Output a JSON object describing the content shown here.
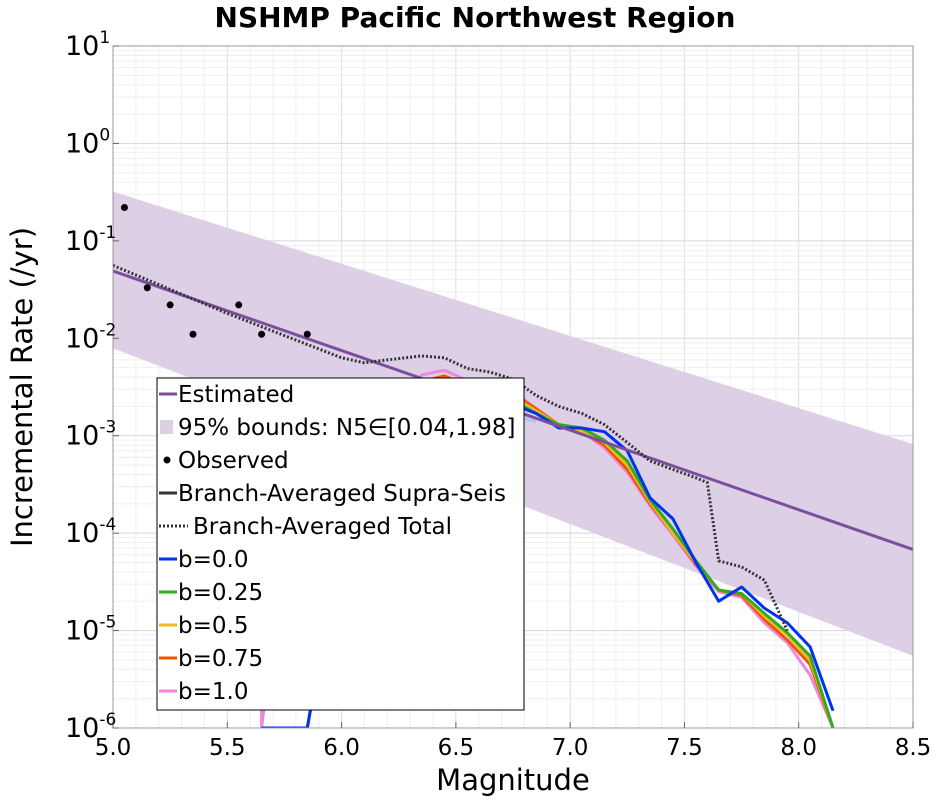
{
  "chart_data": {
    "type": "line",
    "title": "NSHMP Pacific Northwest Region",
    "xlabel": "Magnitude",
    "ylabel": "Incremental Rate (/yr)",
    "xlim": [
      5.0,
      8.5
    ],
    "ylim": [
      1e-06,
      10
    ],
    "yscale": "log",
    "grid": true,
    "legend_placement": "lower-left",
    "x_ticks": [
      "5.0",
      "5.5",
      "6.0",
      "6.5",
      "7.0",
      "7.5",
      "8.0",
      "8.5"
    ],
    "y_ticks": [
      {
        "base": "10",
        "exp": "-6",
        "value": 1e-06
      },
      {
        "base": "10",
        "exp": "-5",
        "value": 1e-05
      },
      {
        "base": "10",
        "exp": "-4",
        "value": 0.0001
      },
      {
        "base": "10",
        "exp": "-3",
        "value": 0.001
      },
      {
        "base": "10",
        "exp": "-2",
        "value": 0.01
      },
      {
        "base": "10",
        "exp": "-1",
        "value": 0.1
      },
      {
        "base": "10",
        "exp": "0",
        "value": 1
      },
      {
        "base": "10",
        "exp": "1",
        "value": 10
      }
    ],
    "estimated": {
      "name": "Estimated",
      "color": "#7b4f9d",
      "x": [
        5.0,
        8.5
      ],
      "y": [
        0.049,
        6.8e-05
      ]
    },
    "bounds": {
      "name": "95% bounds: N5∈[0.04,1.98]",
      "color": "#ddd0e6",
      "x": [
        5.0,
        8.5
      ],
      "upper": [
        0.32,
        0.00082
      ],
      "lower": [
        0.0079,
        5.5e-06
      ]
    },
    "observed": {
      "name": "Observed",
      "color": "#000000",
      "x": [
        5.05,
        5.15,
        5.25,
        5.35,
        5.55,
        5.65,
        5.85
      ],
      "y": [
        0.22,
        0.033,
        0.022,
        0.011,
        0.022,
        0.011,
        0.011
      ]
    },
    "supra_seis": {
      "name": "Branch-Averaged Supra-Seis",
      "color": "#333333",
      "x": [
        5.65,
        5.85,
        6.05,
        6.15,
        6.25,
        6.35,
        6.45,
        6.55,
        6.65,
        6.75,
        6.85,
        6.95,
        7.05,
        7.15,
        7.25,
        7.35,
        7.45,
        7.55,
        7.65,
        7.75,
        7.85,
        7.95,
        8.05,
        8.15
      ],
      "y": [
        1e-06,
        1e-06,
        0.0005,
        0.00016,
        0.0012,
        0.0025,
        0.0031,
        0.0026,
        0.0027,
        0.0024,
        0.0018,
        0.0013,
        0.0012,
        0.0009,
        0.0005,
        0.00022,
        0.0001,
        5e-05,
        2.6e-05,
        2.4e-05,
        1.5e-05,
        9e-06,
        5e-06,
        1e-06
      ]
    },
    "total": {
      "name": "Branch-Averaged Total",
      "color": "#333333",
      "x": [
        5.0,
        5.5,
        6.0,
        6.1,
        6.2,
        6.35,
        6.45,
        6.55,
        6.65,
        6.75,
        6.85,
        6.95,
        7.05,
        7.15,
        7.25,
        7.35,
        7.45,
        7.55,
        7.6,
        7.65,
        7.75,
        7.85,
        7.95
      ],
      "y": [
        0.056,
        0.018,
        0.0063,
        0.0056,
        0.006,
        0.0066,
        0.0063,
        0.0049,
        0.0045,
        0.0038,
        0.0026,
        0.002,
        0.0017,
        0.0013,
        0.00085,
        0.00055,
        0.00045,
        0.00037,
        0.00033,
        5.2e-05,
        4.5e-05,
        3.3e-05,
        1e-05
      ]
    },
    "series": [
      {
        "name": "b=0.0",
        "color": "#0033ee",
        "x": [
          5.65,
          5.85,
          6.05,
          6.15,
          6.25,
          6.35,
          6.45,
          6.55,
          6.65,
          6.75,
          6.85,
          6.95,
          7.05,
          7.15,
          7.25,
          7.35,
          7.45,
          7.55,
          7.65,
          7.75,
          7.85,
          7.95,
          8.05,
          8.15
        ],
        "y": [
          1e-06,
          1e-06,
          0.0005,
          0.00015,
          0.0009,
          0.0019,
          0.0021,
          0.002,
          0.0021,
          0.0021,
          0.0017,
          0.0012,
          0.0012,
          0.0011,
          0.0007,
          0.00023,
          0.00014,
          5e-05,
          2e-05,
          2.8e-05,
          1.7e-05,
          1.2e-05,
          6.8e-06,
          1.5e-06
        ]
      },
      {
        "name": "b=0.25",
        "color": "#33aa22",
        "x": [
          5.65,
          5.85,
          6.05,
          6.15,
          6.25,
          6.35,
          6.45,
          6.55,
          6.65,
          6.75,
          6.85,
          6.95,
          7.05,
          7.15,
          7.25,
          7.35,
          7.45,
          7.55,
          7.65,
          7.75,
          7.85,
          7.95,
          8.05,
          8.15
        ],
        "y": [
          1e-06,
          1e-06,
          0.0005,
          0.00016,
          0.0012,
          0.0024,
          0.0028,
          0.0025,
          0.0026,
          0.0023,
          0.0017,
          0.0013,
          0.0012,
          0.0009,
          0.00055,
          0.00022,
          0.00011,
          5.2e-05,
          2.6e-05,
          2.4e-05,
          1.5e-05,
          9.5e-06,
          5.5e-06,
          1e-06
        ]
      },
      {
        "name": "b=0.5",
        "color": "#eebb22",
        "x": [
          5.65,
          5.85,
          6.05,
          6.15,
          6.25,
          6.35,
          6.45,
          6.55,
          6.65,
          6.75,
          6.85,
          6.95,
          7.05,
          7.15,
          7.25,
          7.35,
          7.45,
          7.55,
          7.65,
          7.75,
          7.85,
          7.95,
          8.05,
          8.15
        ],
        "y": [
          1e-06,
          1e-06,
          0.0005,
          0.00018,
          0.0014,
          0.003,
          0.0035,
          0.0029,
          0.003,
          0.0025,
          0.0018,
          0.0013,
          0.0011,
          0.00085,
          0.0005,
          0.00021,
          0.0001,
          5e-05,
          2.6e-05,
          2.4e-05,
          1.4e-05,
          9e-06,
          5e-06,
          1e-06
        ]
      },
      {
        "name": "b=0.75",
        "color": "#ee5500",
        "x": [
          5.65,
          5.85,
          6.05,
          6.15,
          6.25,
          6.35,
          6.45,
          6.55,
          6.65,
          6.75,
          6.85,
          6.95,
          7.05,
          7.15,
          7.25,
          7.35,
          7.45,
          7.55,
          7.65,
          7.75,
          7.85,
          7.95,
          8.05,
          8.15
        ],
        "y": [
          1e-06,
          1e-06,
          0.0005,
          0.0002,
          0.0017,
          0.0036,
          0.0041,
          0.0033,
          0.0033,
          0.0027,
          0.0019,
          0.0013,
          0.0011,
          0.0008,
          0.00045,
          0.0002,
          0.0001,
          4.8e-05,
          2.6e-05,
          2.3e-05,
          1.3e-05,
          8e-06,
          4.5e-06,
          1e-06
        ]
      },
      {
        "name": "b=1.0",
        "color": "#ee88dd",
        "x": [
          5.65,
          5.65,
          5.65,
          5.75,
          5.85,
          5.85,
          5.95,
          6.05,
          6.15,
          6.25,
          6.35,
          6.45,
          6.55,
          6.65,
          6.75,
          6.85,
          6.95,
          7.05,
          7.15,
          7.25,
          7.35,
          7.45,
          7.55,
          7.65,
          7.75,
          7.85,
          7.95,
          8.05,
          8.15
        ],
        "y": [
          1e-06,
          5e-05,
          1e-06,
          0.0001,
          6e-05,
          6e-05,
          9e-05,
          0.0005,
          0.00022,
          0.002,
          0.0042,
          0.0047,
          0.0037,
          0.0036,
          0.0029,
          0.0019,
          0.0013,
          0.0011,
          0.00075,
          0.00042,
          0.00019,
          9.5e-05,
          4.6e-05,
          2.5e-05,
          2.2e-05,
          1.2e-05,
          7.5e-06,
          3.5e-06,
          1e-06
        ]
      },
      {
        "name": "",
        "color": "#b8c0f2",
        "x": [
          6.05,
          6.15,
          6.25,
          6.35,
          6.45,
          6.55,
          6.65,
          6.75,
          6.85
        ],
        "y": [
          0.0005,
          0.00011,
          0.0006,
          0.0016,
          0.0019,
          0.0017,
          0.0017,
          0.0016,
          0.0014
        ]
      }
    ]
  }
}
